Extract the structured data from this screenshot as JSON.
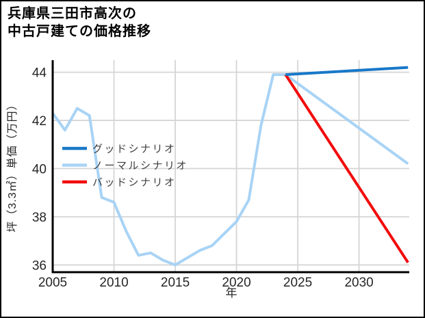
{
  "figure": {
    "title_line1": "兵庫県三田市高次の",
    "title_line2": "中古戸建ての価格推移"
  },
  "chart_data": {
    "type": "line",
    "title": "兵庫県三田市高次の中古戸建ての価格推移",
    "xlabel": "年",
    "ylabel": "坪（3.3㎡）単価（万円）",
    "xlim": [
      2005,
      2034.1
    ],
    "ylim": [
      35.7,
      44.5
    ],
    "x_ticks": [
      2005,
      2010,
      2015,
      2020,
      2025,
      2030
    ],
    "y_ticks": [
      36,
      38,
      40,
      42,
      44
    ],
    "grid": true,
    "legend_position": "inside-center-left",
    "series": [
      {
        "key": "normal-scenario",
        "name": "ノーマルシナリオ",
        "color": "#a8d3f5",
        "x": [
          2005,
          2006,
          2007,
          2008,
          2009,
          2010,
          2011,
          2012,
          2013,
          2014,
          2015,
          2016,
          2017,
          2018,
          2019,
          2020,
          2021,
          2022,
          2023,
          2024,
          2034
        ],
        "values": [
          42.3,
          41.6,
          42.5,
          42.2,
          38.8,
          38.6,
          37.4,
          36.4,
          36.5,
          36.2,
          36.0,
          36.3,
          36.6,
          36.8,
          37.3,
          37.8,
          38.7,
          41.8,
          43.9,
          43.9,
          40.2
        ]
      },
      {
        "key": "bad-scenario",
        "name": "バッドシナリオ",
        "color": "#f20c0c",
        "x": [
          2024,
          2034
        ],
        "values": [
          43.9,
          36.1
        ]
      },
      {
        "key": "good-scenario",
        "name": "グッドシナリオ",
        "color": "#1878c8",
        "x": [
          2024,
          2034
        ],
        "values": [
          43.9,
          44.2
        ]
      }
    ],
    "legend_order": [
      "good-scenario",
      "normal-scenario",
      "bad-scenario"
    ]
  },
  "colors": {
    "good": "#1878c8",
    "normal": "#a8d3f5",
    "bad": "#f20c0c",
    "grid": "#d5d5d5",
    "axis": "#000000",
    "tick_label": "#262626",
    "legend_text": "#3d3d3d"
  }
}
